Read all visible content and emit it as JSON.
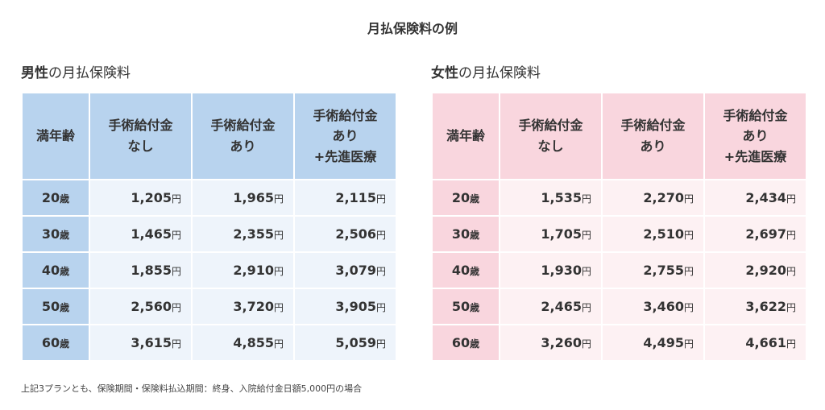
{
  "title": "月払保険料の例",
  "unit": "円",
  "age_unit": "歳",
  "headers": {
    "age": "満年齢",
    "col1": [
      "手術給付金",
      "なし"
    ],
    "col2": [
      "手術給付金",
      "あり"
    ],
    "col3": [
      "手術給付金",
      "あり",
      "+先進医療"
    ]
  },
  "male": {
    "title_strong": "男性",
    "title_rest": "の月払保険料",
    "rows": [
      {
        "age": "20",
        "v1": "1,205",
        "v2": "1,965",
        "v3": "2,115"
      },
      {
        "age": "30",
        "v1": "1,465",
        "v2": "2,355",
        "v3": "2,506"
      },
      {
        "age": "40",
        "v1": "1,855",
        "v2": "2,910",
        "v3": "3,079"
      },
      {
        "age": "50",
        "v1": "2,560",
        "v2": "3,720",
        "v3": "3,905"
      },
      {
        "age": "60",
        "v1": "3,615",
        "v2": "4,855",
        "v3": "5,059"
      }
    ]
  },
  "female": {
    "title_strong": "女性",
    "title_rest": "の月払保険料",
    "rows": [
      {
        "age": "20",
        "v1": "1,535",
        "v2": "2,270",
        "v3": "2,434"
      },
      {
        "age": "30",
        "v1": "1,705",
        "v2": "2,510",
        "v3": "2,697"
      },
      {
        "age": "40",
        "v1": "1,930",
        "v2": "2,755",
        "v3": "2,920"
      },
      {
        "age": "50",
        "v1": "2,465",
        "v2": "3,460",
        "v3": "3,622"
      },
      {
        "age": "60",
        "v1": "3,260",
        "v2": "4,495",
        "v3": "4,661"
      }
    ]
  },
  "footnote": "上記3プランとも、保険期間・保険料払込期間：終身、入院給付金日額5,000円の場合",
  "colors": {
    "male_header": "#b8d3ee",
    "male_cell": "#eef4fb",
    "female_header": "#f9d6de",
    "female_cell": "#fdf1f3"
  }
}
